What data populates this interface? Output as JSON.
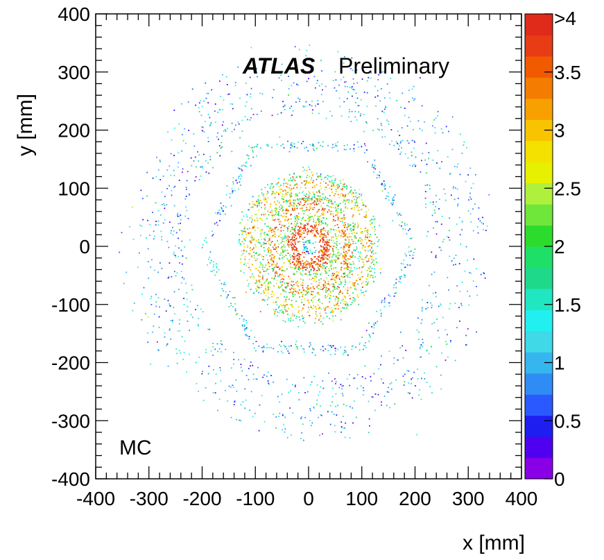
{
  "chart_data": {
    "type": "heatmap",
    "xlabel": "x [mm]",
    "ylabel": "y [mm]",
    "xlim": [
      -400,
      400
    ],
    "ylim": [
      -400,
      400
    ],
    "xticks": [
      -400,
      -300,
      -200,
      -100,
      0,
      100,
      200,
      300,
      400
    ],
    "yticks": [
      -400,
      -300,
      -200,
      -100,
      0,
      100,
      200,
      300,
      400
    ],
    "zlim": [
      0,
      4
    ],
    "colorbar_ticks": [
      "0",
      "0.5",
      "1",
      "1.5",
      "2",
      "2.5",
      "3",
      "3.5",
      ">4"
    ],
    "colorbar_tick_values": [
      0,
      0.5,
      1,
      1.5,
      2,
      2.5,
      3,
      3.5,
      4
    ],
    "colorbar_colors": [
      "#8a00e6",
      "#5000f0",
      "#1e1ef0",
      "#2a5aff",
      "#2f8cf5",
      "#36b6ee",
      "#3fd9e8",
      "#22f0f0",
      "#21e6c2",
      "#1fd98a",
      "#1fe066",
      "#2cdc2c",
      "#6ee63a",
      "#aef03c",
      "#e6f000",
      "#f5e100",
      "#f8c400",
      "#f7a000",
      "#f47c00",
      "#f25a00",
      "#e83c14",
      "#e02a1a"
    ],
    "grid": false,
    "rings": [
      {
        "radius": 10,
        "level": 1.2,
        "shape": "circle",
        "spread": 3,
        "count": 40
      },
      {
        "radius": 33,
        "level": 3.8,
        "shape": "circle",
        "spread": 6,
        "count": 420
      },
      {
        "radius": 50,
        "level": 2.2,
        "shape": "circle",
        "spread": 6,
        "count": 260
      },
      {
        "radius": 73,
        "level": 3.3,
        "shape": "circle",
        "spread": 7,
        "count": 520
      },
      {
        "radius": 88,
        "level": 2.0,
        "shape": "circle",
        "spread": 6,
        "count": 340
      },
      {
        "radius": 110,
        "level": 3.0,
        "shape": "circle",
        "spread": 9,
        "count": 620
      },
      {
        "radius": 125,
        "level": 1.8,
        "shape": "circle",
        "spread": 6,
        "count": 300
      },
      {
        "radius": 200,
        "level": 1.1,
        "shape": "hexagon",
        "spread": 5,
        "count": 420
      },
      {
        "radius": 245,
        "level": 1.0,
        "shape": "circle",
        "spread": 10,
        "count": 380
      },
      {
        "radius": 285,
        "level": 1.0,
        "shape": "circle",
        "spread": 14,
        "count": 420
      },
      {
        "radius": 320,
        "level": 0.95,
        "shape": "circle",
        "spread": 16,
        "count": 300
      }
    ],
    "annotations": {
      "experiment": "ATLAS",
      "status": "Preliminary",
      "sample": "MC"
    }
  }
}
